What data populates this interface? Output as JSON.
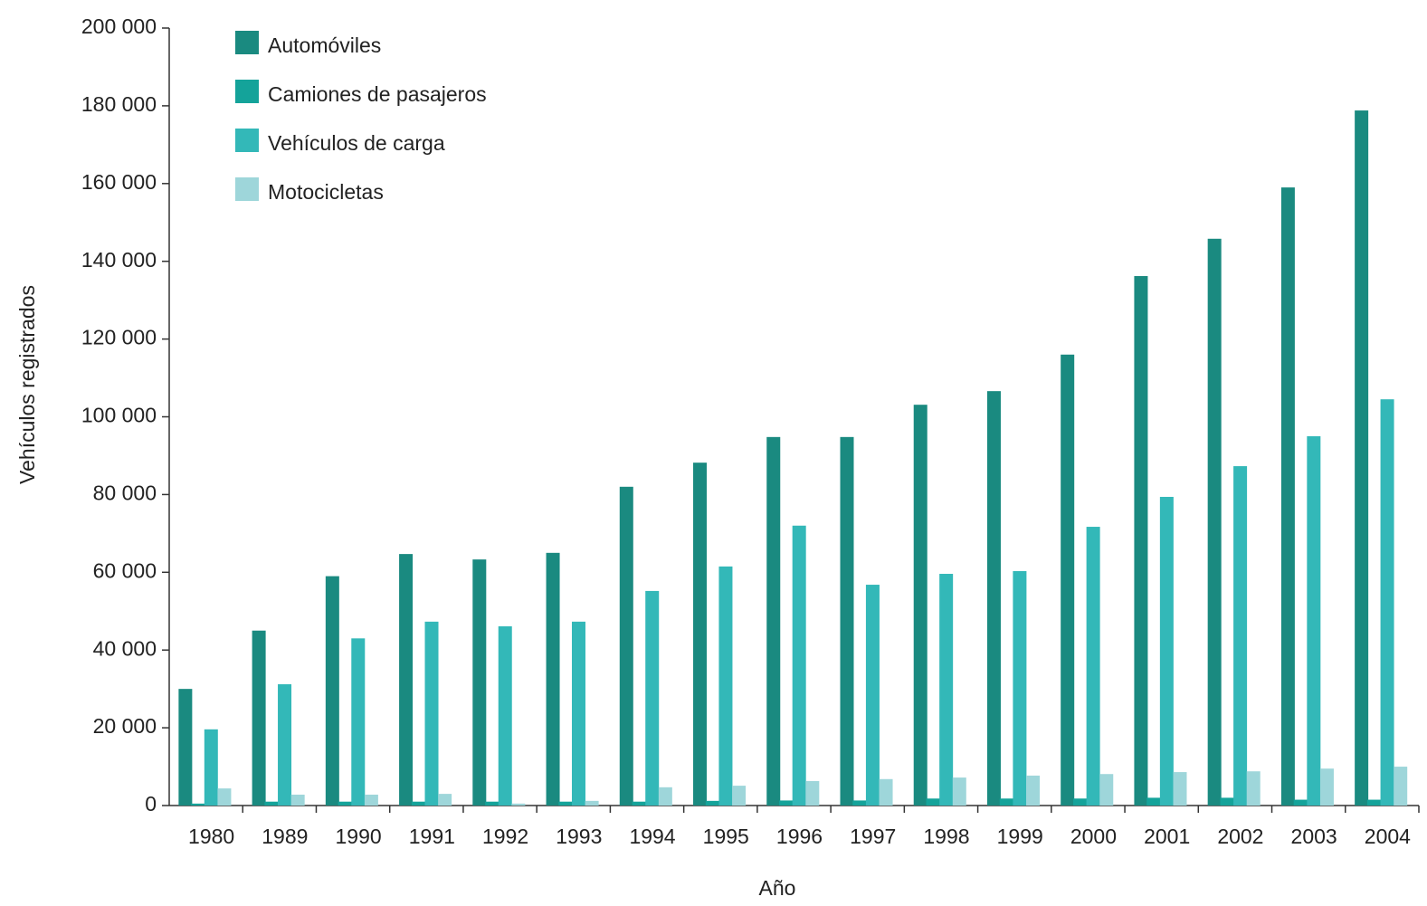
{
  "chart_data": {
    "type": "bar",
    "categories": [
      "1980",
      "1989",
      "1990",
      "1991",
      "1992",
      "1993",
      "1994",
      "1995",
      "1996",
      "1997",
      "1998",
      "1999",
      "2000",
      "2001",
      "2002",
      "2003",
      "2004"
    ],
    "series": [
      {
        "name": "Automóviles",
        "color": "#1a8a80",
        "values": [
          30000,
          45000,
          59000,
          64700,
          63300,
          65000,
          82000,
          88200,
          94800,
          94800,
          103100,
          106600,
          116000,
          136200,
          145800,
          159000,
          178800
        ]
      },
      {
        "name": "Camiones de pasajeros",
        "color": "#14a39a",
        "values": [
          500,
          1000,
          1000,
          1000,
          1000,
          1000,
          1000,
          1200,
          1300,
          1300,
          1800,
          1800,
          1800,
          2000,
          2000,
          1500,
          1500
        ]
      },
      {
        "name": "Vehículos de carga",
        "color": "#33b8b8",
        "values": [
          19600,
          31200,
          43000,
          47300,
          46100,
          47300,
          55200,
          61500,
          72000,
          56800,
          59600,
          60300,
          71700,
          79400,
          87300,
          95000,
          104500
        ]
      },
      {
        "name": "Motocicletas",
        "color": "#9ed6da",
        "values": [
          4400,
          2800,
          2800,
          3000,
          500,
          1200,
          4700,
          5100,
          6300,
          6800,
          7200,
          7700,
          8100,
          8600,
          8800,
          9500,
          10000
        ]
      }
    ],
    "ylim": [
      0,
      200000
    ],
    "yticks": [
      0,
      {
        "value": 20000,
        "label": "20 000"
      },
      {
        "value": 40000,
        "label": "40 000"
      },
      {
        "value": 60000,
        "label": "60 000"
      },
      {
        "value": 80000,
        "label": "80 000"
      },
      {
        "value": 100000,
        "label": "100 000"
      },
      {
        "value": 120000,
        "label": "120 000"
      },
      {
        "value": 140000,
        "label": "140 000"
      },
      {
        "value": 160000,
        "label": "160 000"
      },
      {
        "value": 180000,
        "label": "180 000"
      },
      {
        "value": 200000,
        "label": "200 000"
      }
    ],
    "xlabel": "Año",
    "ylabel": "Vehículos registrados",
    "legend": "top-left"
  }
}
